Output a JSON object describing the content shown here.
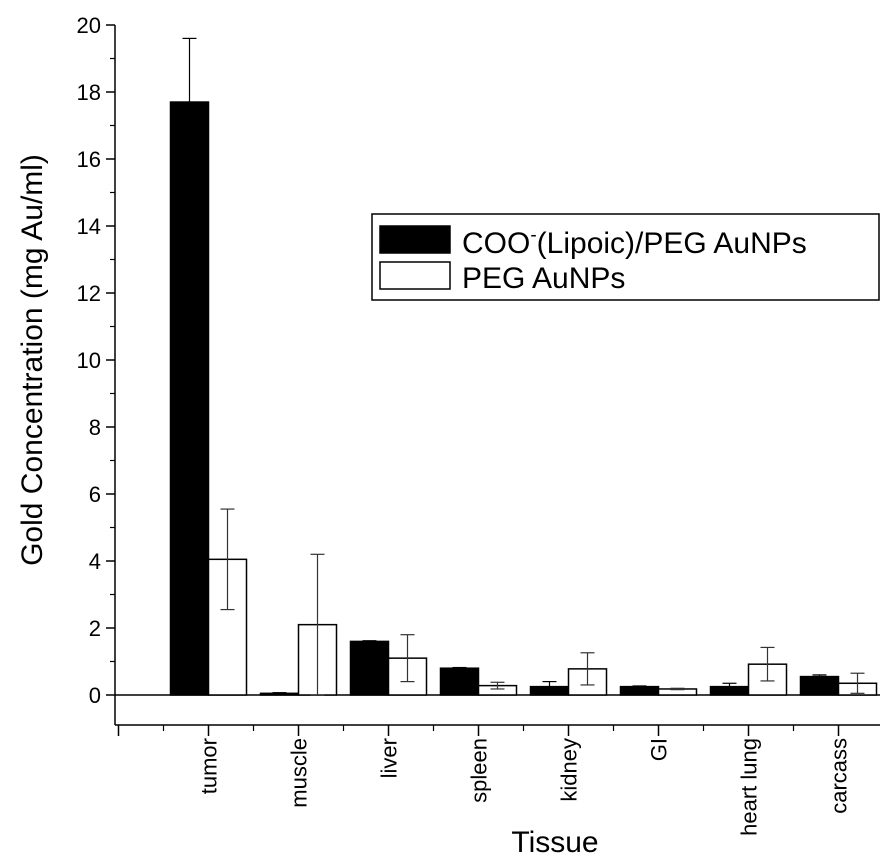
{
  "chart_data": {
    "type": "bar",
    "title": "",
    "xlabel": "Tissue",
    "ylabel": "Gold Concentration (mg Au/ml)",
    "ylim": [
      0,
      20
    ],
    "yticks": [
      0,
      2,
      4,
      6,
      8,
      10,
      12,
      14,
      16,
      18,
      20
    ],
    "categories": [
      "tumor",
      "muscle",
      "liver",
      "spleen",
      "kidney",
      "GI",
      "heart lung",
      "carcass"
    ],
    "grid": false,
    "legend_position": "upper-right",
    "series": [
      {
        "name": "COO-(Lipoic)/PEG AuNPs",
        "name_parts": [
          "COO",
          "-",
          "(Lipoic)/PEG AuNPs"
        ],
        "color": "#000000",
        "values": [
          17.7,
          0.05,
          1.6,
          0.8,
          0.25,
          0.25,
          0.25,
          0.55
        ],
        "errors": [
          1.9,
          0.02,
          0.02,
          0.02,
          0.15,
          0.02,
          0.1,
          0.05
        ]
      },
      {
        "name": "PEG AuNPs",
        "color": "#ffffff",
        "values": [
          4.05,
          2.1,
          1.1,
          0.28,
          0.78,
          0.18,
          0.92,
          0.35
        ],
        "errors": [
          1.5,
          2.1,
          0.7,
          0.1,
          0.48,
          0.02,
          0.5,
          0.3
        ]
      }
    ]
  }
}
